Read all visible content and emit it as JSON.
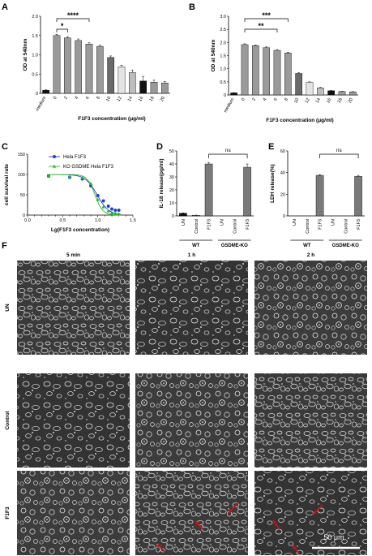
{
  "panels": {
    "A": {
      "label": "A"
    },
    "B": {
      "label": "B"
    },
    "C": {
      "label": "C"
    },
    "D": {
      "label": "D"
    },
    "E": {
      "label": "E"
    },
    "F": {
      "label": "F"
    }
  },
  "chart_data": [
    {
      "id": "A",
      "type": "bar",
      "categories": [
        "medium",
        "0",
        "2",
        "4",
        "6",
        "8",
        "10",
        "12",
        "14",
        "16",
        "18",
        "20"
      ],
      "values": [
        0.08,
        1.5,
        1.44,
        1.37,
        1.28,
        1.22,
        0.93,
        0.69,
        0.54,
        0.32,
        0.29,
        0.27
      ],
      "errors": [
        0.01,
        0.03,
        0.03,
        0.04,
        0.03,
        0.03,
        0.04,
        0.04,
        0.06,
        0.12,
        0.05,
        0.04
      ],
      "colors": [
        "#111111",
        "#9a9a9a",
        "#9a9a9a",
        "#9a9a9a",
        "#9a9a9a",
        "#9a9a9a",
        "#6a6a6a",
        "#e4e4e4",
        "#bdbdbd",
        "#111111",
        "#9a9a9a",
        "#9a9a9a"
      ],
      "xlabel": "F1F3 concentration (μg/ml)",
      "ylabel": "OD at 540nm",
      "ylim": [
        0,
        2.0
      ],
      "yticks": [
        "0",
        "0.5",
        "1.0",
        "1.5",
        "2.0"
      ],
      "significance": [
        {
          "label": "****",
          "from": "0",
          "to": "6"
        },
        {
          "label": "*",
          "from": "0",
          "to": "2"
        }
      ]
    },
    {
      "id": "B",
      "type": "bar",
      "categories": [
        "medium",
        "0",
        "2",
        "4",
        "6",
        "8",
        "10",
        "12",
        "14",
        "16",
        "18",
        "20"
      ],
      "values": [
        0.08,
        1.92,
        1.88,
        1.8,
        1.7,
        1.6,
        0.82,
        0.48,
        0.27,
        0.16,
        0.13,
        0.12
      ],
      "errors": [
        0.01,
        0.03,
        0.03,
        0.03,
        0.03,
        0.03,
        0.03,
        0.02,
        0.02,
        0.01,
        0.01,
        0.01
      ],
      "colors": [
        "#111111",
        "#9a9a9a",
        "#9a9a9a",
        "#9a9a9a",
        "#9a9a9a",
        "#9a9a9a",
        "#6a6a6a",
        "#e4e4e4",
        "#bdbdbd",
        "#111111",
        "#9a9a9a",
        "#9a9a9a"
      ],
      "xlabel": "F1F3 concentration (μg/ml)",
      "ylabel": "OD at 540nm",
      "ylim": [
        0,
        3.0
      ],
      "yticks": [
        "0",
        "0.5",
        "1.0",
        "1.5",
        "2.0",
        "2.5",
        "3.0"
      ],
      "significance": [
        {
          "label": "***",
          "from": "0",
          "to": "8"
        },
        {
          "label": "**",
          "from": "0",
          "to": "6"
        }
      ]
    },
    {
      "id": "C",
      "type": "scatter",
      "xlabel": "Lg(F1F3 concentration)",
      "ylabel": "cell survival rate",
      "xlim": [
        0,
        1.5
      ],
      "ylim": [
        0,
        150
      ],
      "xticks": [
        "0.0",
        "0.5",
        "1.0",
        "1.5"
      ],
      "yticks": [
        "0",
        "50",
        "100",
        "150"
      ],
      "series": [
        {
          "name": "Hela F1F3",
          "color": "#1f3fd8",
          "marker": "circle",
          "x": [
            0.3,
            0.6,
            0.78,
            0.9,
            1.0,
            1.08,
            1.15,
            1.2,
            1.25,
            1.3
          ],
          "y": [
            96,
            93,
            89,
            72,
            48,
            35,
            22,
            15,
            12,
            12
          ]
        },
        {
          "name": "KO GSDME Hela F1F3",
          "color": "#22bb22",
          "marker": "triangle",
          "x": [
            0.3,
            0.6,
            0.78,
            0.9,
            1.0,
            1.08,
            1.15,
            1.2,
            1.25,
            1.3
          ],
          "y": [
            96,
            94,
            92,
            78,
            38,
            20,
            10,
            5,
            4,
            3
          ]
        }
      ]
    },
    {
      "id": "D",
      "type": "bar",
      "categories": [
        "UN",
        "Control",
        "F1F3",
        "UN",
        "Control",
        "F1F3"
      ],
      "values": [
        2,
        0.5,
        40,
        0,
        0,
        37.5
      ],
      "errors": [
        0.3,
        0.1,
        1.2,
        0,
        0,
        2.5
      ],
      "colors": [
        "#111111",
        "#9a9a9a",
        "#7a7a7a",
        "#111111",
        "#9a9a9a",
        "#7a7a7a"
      ],
      "groups": [
        "WT",
        "GSDME-KO"
      ],
      "ylabel": "IL-18 release(pg/ml)",
      "ylim": [
        0,
        50
      ],
      "yticks": [
        "0",
        "10",
        "20",
        "30",
        "40",
        "50"
      ],
      "significance": [
        {
          "label": "ns",
          "from": "F1F3",
          "to": "F1F3"
        }
      ]
    },
    {
      "id": "E",
      "type": "bar",
      "categories": [
        "UN",
        "Control",
        "F1F3",
        "UN",
        "Control",
        "F1F3"
      ],
      "values": [
        0,
        0,
        37.5,
        0,
        0,
        36.5
      ],
      "errors": [
        0,
        0,
        0.6,
        0,
        0,
        0.9
      ],
      "colors": [
        "#111111",
        "#9a9a9a",
        "#7a7a7a",
        "#111111",
        "#9a9a9a",
        "#7a7a7a"
      ],
      "groups": [
        "WT",
        "GSDME-KO"
      ],
      "ylabel": "LDH release(%)",
      "ylim": [
        0,
        60
      ],
      "yticks": [
        "0",
        "20",
        "40",
        "60"
      ],
      "significance": [
        {
          "label": "ns",
          "from": "F1F3",
          "to": "F1F3"
        }
      ]
    }
  ],
  "micrographs": {
    "columns": [
      "5 min",
      "1 h",
      "2 h"
    ],
    "rows": [
      "UN",
      "Control",
      "F1F3"
    ],
    "scale_bar": "50 μm",
    "arrow_color": "#cc1111"
  }
}
